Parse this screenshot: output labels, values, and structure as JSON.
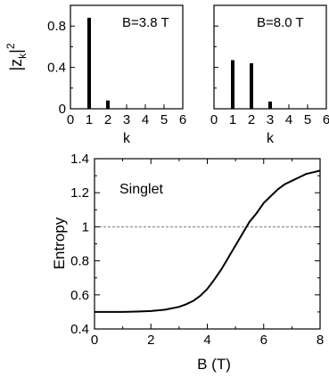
{
  "chart_data": [
    {
      "type": "bar",
      "ylabel": "|z_k|²",
      "xlabel": "k",
      "annotation": "B=3.8 T",
      "xlim": [
        0,
        6
      ],
      "ylim": [
        0,
        1
      ],
      "x": [
        1,
        2,
        3,
        4,
        5,
        6
      ],
      "values": [
        0.88,
        0.08,
        0.005,
        0,
        0,
        0
      ],
      "xticks": [
        "0",
        "1",
        "2",
        "3",
        "4",
        "5",
        "6"
      ],
      "yticks": [
        "0",
        "0.4",
        "0.8"
      ]
    },
    {
      "type": "bar",
      "xlabel": "k",
      "annotation": "B=8.0 T",
      "xlim": [
        0,
        6
      ],
      "ylim": [
        0,
        1
      ],
      "x": [
        1,
        2,
        3,
        4,
        5,
        6
      ],
      "values": [
        0.47,
        0.44,
        0.07,
        0,
        0,
        0
      ],
      "xticks": [
        "0",
        "1",
        "2",
        "3",
        "4",
        "5",
        "6"
      ]
    },
    {
      "type": "line",
      "xlabel": "B (T)",
      "ylabel": "Entropy",
      "annotation": "Singlet",
      "xlim": [
        0,
        8
      ],
      "ylim": [
        0.4,
        1.4
      ],
      "xticks": [
        "0",
        "2",
        "4",
        "6",
        "8"
      ],
      "yticks": [
        "0.4",
        "0.6",
        "0.8",
        "1",
        "1.2",
        "1.4"
      ],
      "reference_line": 1.0,
      "x": [
        0,
        0.5,
        1,
        1.5,
        2,
        2.5,
        3,
        3.25,
        3.5,
        3.75,
        4,
        4.25,
        4.5,
        4.75,
        5,
        5.25,
        5.5,
        5.75,
        6,
        6.25,
        6.5,
        6.75,
        7,
        7.25,
        7.5,
        7.75,
        8
      ],
      "y": [
        0.5,
        0.5,
        0.5,
        0.502,
        0.505,
        0.513,
        0.53,
        0.545,
        0.565,
        0.595,
        0.635,
        0.69,
        0.75,
        0.82,
        0.89,
        0.96,
        1.03,
        1.08,
        1.14,
        1.18,
        1.22,
        1.25,
        1.27,
        1.29,
        1.31,
        1.32,
        1.33
      ]
    }
  ]
}
